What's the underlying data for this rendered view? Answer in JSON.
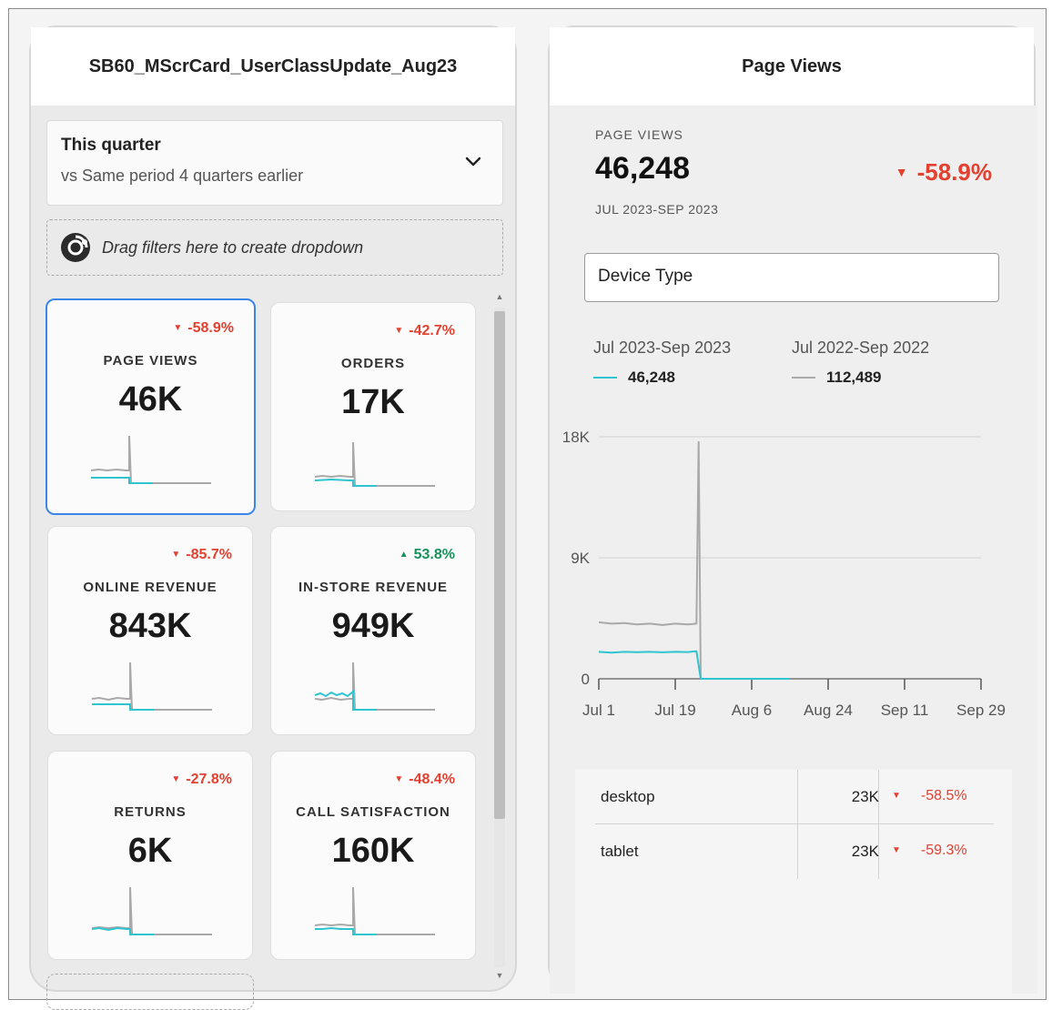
{
  "left_panel": {
    "title": "SB60_MScrCard_UserClassUpdate_Aug23",
    "date_range": {
      "primary": "This quarter",
      "comparison": "vs Same period 4 quarters earlier"
    },
    "drop_zone_text": "Drag filters here to create dropdown",
    "cards": [
      {
        "label": "PAGE VIEWS",
        "value": "46K",
        "change": "-58.9%",
        "direction": "down"
      },
      {
        "label": "ORDERS",
        "value": "17K",
        "change": "-42.7%",
        "direction": "down"
      },
      {
        "label": "ONLINE REVENUE",
        "value": "843K",
        "change": "-85.7%",
        "direction": "down"
      },
      {
        "label": "IN-STORE REVENUE",
        "value": "949K",
        "change": "53.8%",
        "direction": "up"
      },
      {
        "label": "RETURNS",
        "value": "6K",
        "change": "-27.8%",
        "direction": "down"
      },
      {
        "label": "CALL SATISFACTION",
        "value": "160K",
        "change": "-48.4%",
        "direction": "down"
      }
    ]
  },
  "right_panel": {
    "title": "Page Views",
    "metric_label": "PAGE VIEWS",
    "metric_value": "46,248",
    "metric_change": "-58.9%",
    "metric_range": "JUL 2023-SEP 2023",
    "dimension": "Device Type",
    "legend": [
      {
        "period": "Jul 2023-Sep 2023",
        "total": "46,248",
        "color": "#2ec4d0"
      },
      {
        "period": "Jul 2022-Sep 2022",
        "total": "112,489",
        "color": "#a9a9a9"
      }
    ],
    "breakdown": [
      {
        "name": "desktop",
        "value": "23K",
        "change": "-58.5%"
      },
      {
        "name": "tablet",
        "value": "23K",
        "change": "-59.3%"
      }
    ]
  },
  "colors": {
    "accent": "#3b86e8",
    "negative": "#e3402f",
    "positive": "#16935b",
    "current": "#2ec4d0",
    "previous": "#a9a9a9"
  },
  "chart_data": {
    "type": "line",
    "title": "Page Views",
    "x_tick_labels": [
      "Jul 1",
      "Jul 19",
      "Aug 6",
      "Aug 24",
      "Sep 11",
      "Sep 29"
    ],
    "y_tick_labels": [
      "0",
      "9K",
      "18K"
    ],
    "ylim": [
      0,
      18000
    ],
    "x_day_range": [
      0,
      90
    ],
    "series": [
      {
        "name": "Jul 2023-Sep 2023",
        "color": "#2ec4d0",
        "x": [
          0,
          3,
          6,
          9,
          12,
          15,
          18,
          21,
          23,
          24,
          27,
          30,
          33,
          36,
          39,
          42,
          45
        ],
        "y": [
          2000,
          1950,
          2000,
          1980,
          2000,
          1970,
          2000,
          1990,
          2050,
          0,
          0,
          0,
          0,
          0,
          0,
          0,
          0
        ]
      },
      {
        "name": "Jul 2022-Sep 2022",
        "color": "#a9a9a9",
        "x": [
          0,
          3,
          6,
          9,
          12,
          15,
          18,
          21,
          23,
          23.5,
          24,
          27,
          30,
          33,
          36,
          39,
          42,
          45
        ],
        "y": [
          4200,
          4100,
          4150,
          4050,
          4100,
          4000,
          4100,
          4050,
          4100,
          17600,
          0,
          0,
          0,
          0,
          0,
          0,
          0,
          0
        ]
      }
    ]
  }
}
